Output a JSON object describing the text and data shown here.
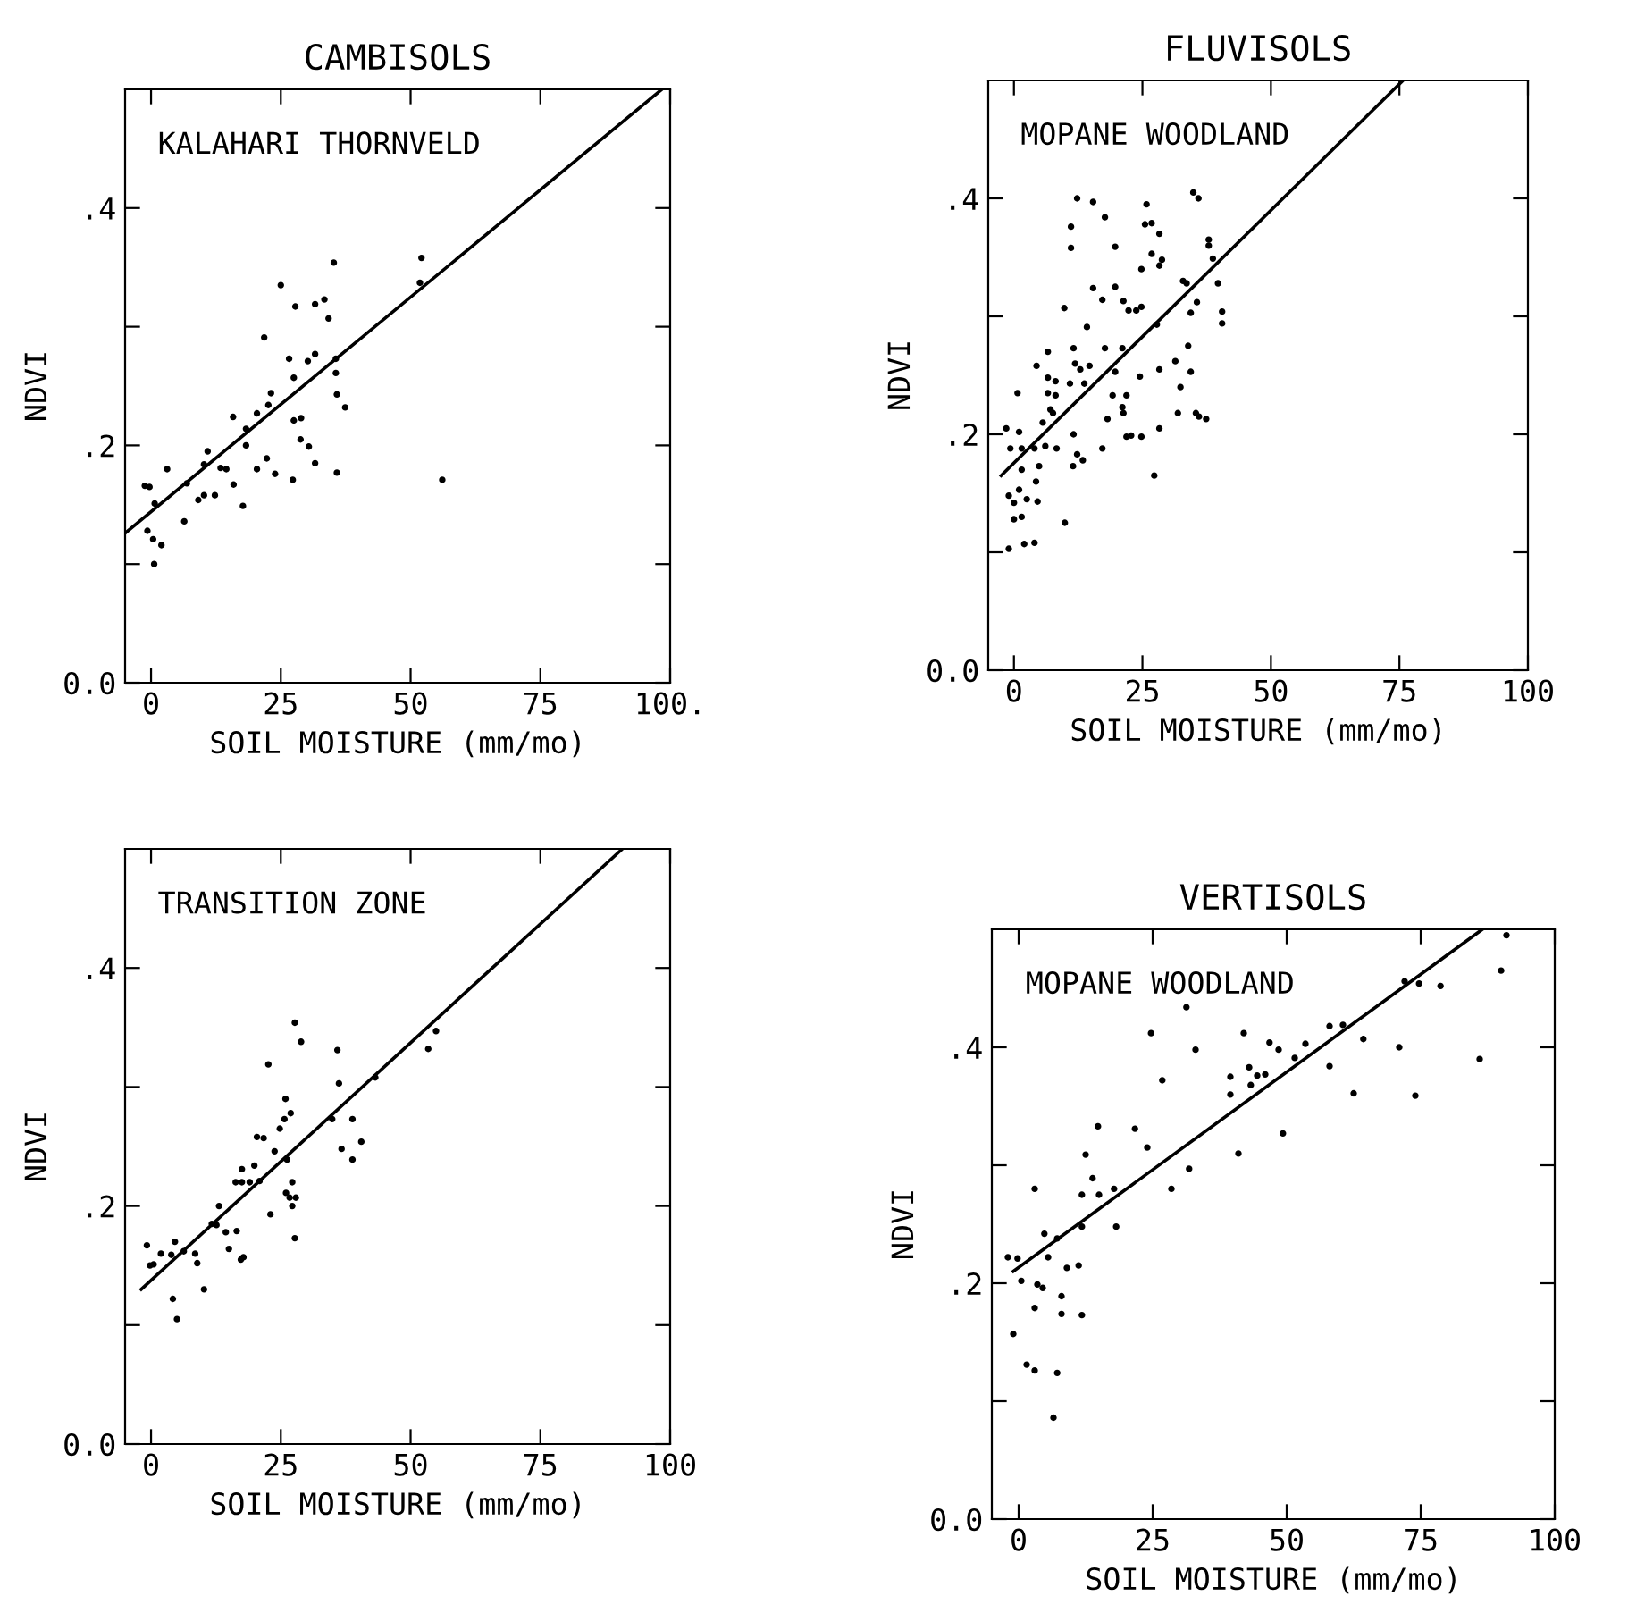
{
  "chart_data": [
    {
      "type": "scatter",
      "title": "CAMBISOLS",
      "xlabel": "SOIL MOISTURE (mm/mo)",
      "ylabel": "NDVI",
      "annotations": [
        "KALAHARI THORNVELD"
      ],
      "xlim": [
        -5,
        100
      ],
      "ylim": [
        0,
        0.5
      ],
      "xticks": [
        0,
        25,
        50,
        75,
        {
          "value": 100,
          "label": "100."
        }
      ],
      "yticks": [
        {
          "value": 0,
          "label": "0.0"
        },
        {
          "value": 0.1,
          "label": null
        },
        {
          "value": 0.2,
          "label": ".2"
        },
        {
          "value": 0.3,
          "label": null
        },
        {
          "value": 0.4,
          "label": ".4"
        }
      ],
      "series": [
        {
          "color": "#000000",
          "marker": "circle",
          "x": [
            -1.2,
            -0.3,
            3.1,
            0.7,
            -0.7,
            0.4,
            2.0,
            0.6,
            6.4,
            6.9,
            10.2,
            10.9,
            9.1,
            10.2,
            12.3,
            13.4,
            14.5,
            15.8,
            15.9,
            17.7,
            18.3,
            18.3,
            20.4,
            22.6,
            23.1,
            20.4,
            22.3,
            23.9,
            21.8,
            25.0,
            26.6,
            27.3,
            27.5,
            28.9,
            27.5,
            27.8,
            30.2,
            31.6,
            28.8,
            30.4,
            31.6,
            31.6,
            33.4,
            34.2,
            35.2,
            35.6,
            35.6,
            35.8,
            37.4,
            35.8,
            52.1,
            51.8,
            56.1
          ],
          "values": [
            0.166,
            0.165,
            0.18,
            0.151,
            0.128,
            0.121,
            0.116,
            0.1,
            0.136,
            0.168,
            0.184,
            0.195,
            0.154,
            0.158,
            0.158,
            0.181,
            0.18,
            0.224,
            0.167,
            0.149,
            0.2,
            0.214,
            0.227,
            0.234,
            0.244,
            0.18,
            0.189,
            0.176,
            0.291,
            0.335,
            0.273,
            0.171,
            0.221,
            0.223,
            0.257,
            0.317,
            0.271,
            0.277,
            0.205,
            0.199,
            0.185,
            0.319,
            0.323,
            0.307,
            0.354,
            0.273,
            0.261,
            0.243,
            0.232,
            0.177,
            0.358,
            0.337,
            0.171
          ]
        },
        {
          "type": "line",
          "color": "#000000",
          "x": [
            -5,
            98.4
          ],
          "values": [
            0.126,
            0.5
          ]
        }
      ]
    },
    {
      "type": "scatter",
      "title": "FLUVISOLS",
      "xlabel": "SOIL MOISTURE (mm/mo)",
      "ylabel": "NDVI",
      "annotations": [
        "MOPANE WOODLAND"
      ],
      "xlim": [
        -5,
        100
      ],
      "ylim": [
        0,
        0.5
      ],
      "xticks": [
        0,
        25,
        50,
        75,
        100
      ],
      "yticks": [
        {
          "value": 0,
          "label": "0.0"
        },
        {
          "value": 0.1,
          "label": null
        },
        {
          "value": 0.2,
          "label": ".2"
        },
        {
          "value": 0.3,
          "label": null
        },
        {
          "value": 0.4,
          "label": ".4"
        }
      ],
      "series": [
        {
          "color": "#000000",
          "marker": "circle",
          "x": [
            -1.5,
            1.0,
            -0.7,
            1.5,
            0.7,
            1.5,
            -1.0,
            0.0,
            1.0,
            0.0,
            1.5,
            -1.0,
            2.0,
            4.0,
            2.5,
            4.6,
            4.3,
            4.9,
            4.0,
            6.1,
            8.3,
            5.6,
            7.1,
            7.6,
            8.1,
            6.6,
            4.4,
            6.6,
            6.6,
            8.1,
            9.8,
            9.9,
            10.9,
            11.5,
            12.3,
            13.4,
            11.6,
            11.6,
            11.9,
            12.9,
            13.7,
            14.7,
            14.2,
            11.1,
            11.1,
            12.3,
            15.4,
            15.4,
            17.2,
            17.7,
            17.2,
            17.7,
            18.2,
            19.2,
            19.7,
            21.1,
            21.1,
            21.3,
            21.9,
            22.8,
            19.7,
            19.7,
            21.3,
            22.3,
            23.8,
            24.8,
            21.9,
            24.8,
            24.5,
            24.8,
            25.8,
            25.5,
            26.8,
            26.8,
            28.3,
            28.8,
            28.3,
            27.8,
            28.3,
            28.3,
            27.3,
            31.4,
            31.9,
            32.4,
            32.9,
            33.6,
            33.9,
            34.4,
            34.4,
            35.4,
            36.0,
            37.4,
            34.9,
            35.9,
            37.9,
            37.9,
            38.7,
            35.6,
            39.7,
            40.5,
            40.5
          ],
          "values": [
            0.205,
            0.202,
            0.188,
            0.188,
            0.235,
            0.17,
            0.148,
            0.142,
            0.153,
            0.128,
            0.13,
            0.103,
            0.107,
            0.108,
            0.145,
            0.143,
            0.16,
            0.173,
            0.188,
            0.19,
            0.188,
            0.21,
            0.221,
            0.218,
            0.233,
            0.235,
            0.258,
            0.27,
            0.248,
            0.245,
            0.307,
            0.125,
            0.243,
            0.173,
            0.183,
            0.178,
            0.2,
            0.273,
            0.26,
            0.255,
            0.243,
            0.258,
            0.291,
            0.376,
            0.358,
            0.4,
            0.397,
            0.324,
            0.314,
            0.384,
            0.188,
            0.273,
            0.213,
            0.233,
            0.253,
            0.273,
            0.223,
            0.218,
            0.198,
            0.199,
            0.359,
            0.325,
            0.313,
            0.305,
            0.305,
            0.308,
            0.233,
            0.198,
            0.249,
            0.34,
            0.395,
            0.378,
            0.379,
            0.353,
            0.37,
            0.348,
            0.343,
            0.293,
            0.255,
            0.205,
            0.165,
            0.262,
            0.218,
            0.24,
            0.33,
            0.328,
            0.275,
            0.303,
            0.253,
            0.218,
            0.215,
            0.213,
            0.405,
            0.4,
            0.365,
            0.36,
            0.349,
            0.312,
            0.328,
            0.304,
            0.294
          ]
        },
        {
          "type": "line",
          "color": "#000000",
          "x": [
            -2.5,
            75.7
          ],
          "values": [
            0.165,
            0.5
          ]
        }
      ]
    },
    {
      "type": "scatter",
      "xlabel": "SOIL MOISTURE (mm/mo)",
      "ylabel": "NDVI",
      "annotations": [
        "TRANSITION ZONE"
      ],
      "xlim": [
        -5,
        100
      ],
      "ylim": [
        0,
        0.5
      ],
      "xticks": [
        0,
        25,
        50,
        75,
        100
      ],
      "yticks": [
        {
          "value": 0,
          "label": "0.0"
        },
        {
          "value": 0.1,
          "label": null
        },
        {
          "value": 0.2,
          "label": ".2"
        },
        {
          "value": 0.3,
          "label": null
        },
        {
          "value": 0.4,
          "label": ".4"
        }
      ],
      "series": [
        {
          "color": "#000000",
          "marker": "circle",
          "x": [
            -0.8,
            -0.2,
            0.5,
            1.9,
            3.9,
            4.6,
            4.2,
            5.0,
            6.3,
            8.5,
            8.9,
            10.2,
            11.7,
            12.6,
            13.1,
            14.4,
            15.0,
            16.5,
            16.3,
            17.5,
            17.5,
            19.0,
            19.9,
            20.9,
            17.3,
            17.8,
            20.4,
            21.7,
            22.6,
            23.0,
            23.8,
            24.8,
            25.7,
            25.9,
            26.9,
            26.2,
            26.0,
            26.7,
            27.2,
            27.9,
            27.2,
            27.7,
            27.7,
            28.9,
            34.9,
            35.9,
            36.2,
            36.7,
            38.8,
            38.8,
            40.5,
            43.2,
            53.4,
            54.9
          ],
          "values": [
            0.167,
            0.15,
            0.151,
            0.16,
            0.159,
            0.17,
            0.122,
            0.105,
            0.162,
            0.16,
            0.152,
            0.13,
            0.185,
            0.184,
            0.2,
            0.178,
            0.164,
            0.179,
            0.22,
            0.231,
            0.22,
            0.22,
            0.234,
            0.221,
            0.155,
            0.157,
            0.258,
            0.257,
            0.319,
            0.193,
            0.246,
            0.265,
            0.273,
            0.29,
            0.278,
            0.239,
            0.211,
            0.207,
            0.22,
            0.207,
            0.2,
            0.173,
            0.354,
            0.338,
            0.273,
            0.331,
            0.303,
            0.248,
            0.239,
            0.273,
            0.254,
            0.308,
            0.332,
            0.347
          ]
        },
        {
          "type": "line",
          "color": "#000000",
          "x": [
            -1.9,
            90.8
          ],
          "values": [
            0.13,
            0.5
          ]
        }
      ]
    },
    {
      "type": "scatter",
      "title": "VERTISOLS",
      "xlabel": "SOIL MOISTURE (mm/mo)",
      "ylabel": "NDVI",
      "annotations": [
        "MOPANE WOODLAND"
      ],
      "xlim": [
        -5,
        100
      ],
      "ylim": [
        0,
        0.5
      ],
      "xticks": [
        0,
        25,
        50,
        75,
        100
      ],
      "yticks": [
        {
          "value": 0,
          "label": "0.0"
        },
        {
          "value": 0.1,
          "label": null
        },
        {
          "value": 0.2,
          "label": ".2"
        },
        {
          "value": 0.3,
          "label": null
        },
        {
          "value": 0.4,
          "label": ".4"
        }
      ],
      "series": [
        {
          "color": "#000000",
          "marker": "circle",
          "x": [
            -2.0,
            -0.2,
            -1.0,
            1.5,
            3.0,
            3.0,
            3.0,
            0.5,
            3.5,
            4.5,
            4.8,
            5.5,
            7.2,
            6.5,
            7.2,
            8.0,
            8.0,
            9.0,
            11.2,
            11.8,
            11.8,
            11.8,
            12.5,
            13.8,
            14.8,
            15.0,
            17.8,
            18.2,
            21.7,
            24.0,
            24.7,
            26.8,
            28.5,
            31.3,
            31.8,
            33.0,
            39.5,
            39.5,
            41.0,
            42.0,
            43.0,
            43.3,
            44.5,
            46.0,
            46.8,
            48.5,
            49.3,
            51.5,
            53.5,
            58.0,
            60.5,
            58.0,
            62.5,
            64.3,
            71.0,
            74.0,
            72.0,
            74.7,
            78.7,
            86.0,
            91.0,
            90.0
          ],
          "values": [
            0.222,
            0.221,
            0.157,
            0.131,
            0.126,
            0.179,
            0.28,
            0.202,
            0.199,
            0.196,
            0.242,
            0.222,
            0.238,
            0.086,
            0.124,
            0.189,
            0.174,
            0.213,
            0.215,
            0.275,
            0.248,
            0.173,
            0.309,
            0.289,
            0.333,
            0.275,
            0.28,
            0.248,
            0.331,
            0.315,
            0.412,
            0.372,
            0.28,
            0.434,
            0.297,
            0.398,
            0.375,
            0.36,
            0.31,
            0.412,
            0.383,
            0.368,
            0.376,
            0.377,
            0.404,
            0.398,
            0.327,
            0.391,
            0.403,
            0.418,
            0.419,
            0.384,
            0.361,
            0.407,
            0.4,
            0.359,
            0.456,
            0.454,
            0.452,
            0.39,
            0.495,
            0.465
          ]
        },
        {
          "type": "line",
          "color": "#000000",
          "x": [
            -1,
            86.5
          ],
          "values": [
            0.21,
            0.5
          ]
        }
      ]
    }
  ]
}
